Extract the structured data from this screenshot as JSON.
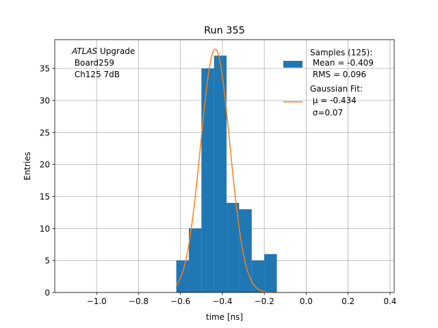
{
  "chart_data": {
    "type": "bar",
    "title": "Run 355",
    "xlabel": "time [ns]",
    "ylabel": "Entries",
    "xlim": [
      -1.2,
      0.42
    ],
    "ylim": [
      0,
      39.5
    ],
    "grid": true,
    "x_ticks": [
      -1.0,
      -0.8,
      -0.6,
      -0.4,
      -0.2,
      0.0,
      0.2,
      0.4
    ],
    "x_tick_labels": [
      "−1.0",
      "−0.8",
      "−0.6",
      "−0.4",
      "−0.2",
      "0.0",
      "0.2",
      "0.4"
    ],
    "y_ticks": [
      0,
      5,
      10,
      15,
      20,
      25,
      30,
      35
    ],
    "y_tick_labels": [
      "0",
      "5",
      "10",
      "15",
      "20",
      "25",
      "30",
      "35"
    ],
    "histogram": {
      "bin_edges": [
        -0.62,
        -0.56,
        -0.5,
        -0.44,
        -0.38,
        -0.32,
        -0.26,
        -0.2,
        -0.14
      ],
      "counts": [
        5,
        10,
        35,
        37,
        14,
        13,
        5,
        6
      ],
      "color": "#1f77b4"
    },
    "fit": {
      "type": "gaussian",
      "mu": -0.434,
      "sigma": 0.07,
      "amplitude": 38,
      "x_range": [
        -0.62,
        -0.14
      ],
      "color": "#ff7f0e"
    },
    "annotation": {
      "line1_italic": "ATLAS",
      "line1_rest": " Upgrade",
      "line2": " Board259",
      "line3": " Ch125 7dB"
    },
    "legend": {
      "position": "top-right",
      "samples_title": "Samples (125):",
      "samples_mean": " Mean = -0.409",
      "samples_rms": " RMS = 0.096",
      "fit_title": "Gaussian Fit:",
      "fit_mu": " μ = -0.434",
      "fit_sigma": " σ=0.07"
    }
  }
}
